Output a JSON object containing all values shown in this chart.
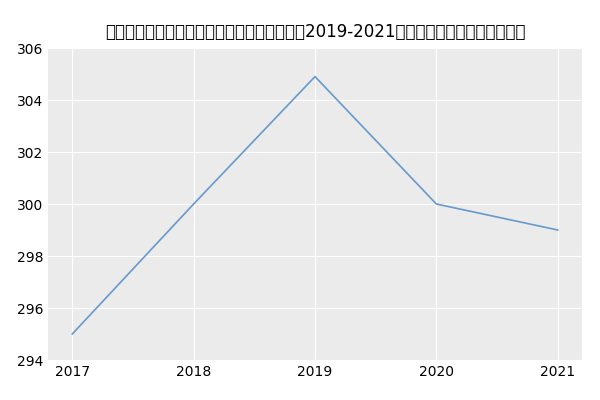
{
  "title": "内蒙古医科大学鄂尔多斯临床医学院外科学（2019-2021历年复试）研究生录取分数线",
  "x": [
    2017,
    2018,
    2019,
    2020,
    2021
  ],
  "y": [
    295,
    300,
    304.9,
    300,
    299
  ],
  "line_color": "#6699cc",
  "figure_bg_color": "#ffffff",
  "plot_bg_color": "#ebebeb",
  "grid_color": "#ffffff",
  "xlim": [
    2016.8,
    2021.2
  ],
  "ylim": [
    294,
    306
  ],
  "yticks": [
    294,
    296,
    298,
    300,
    302,
    304,
    306
  ],
  "xticks": [
    2017,
    2018,
    2019,
    2020,
    2021
  ],
  "title_fontsize": 12,
  "tick_fontsize": 10
}
